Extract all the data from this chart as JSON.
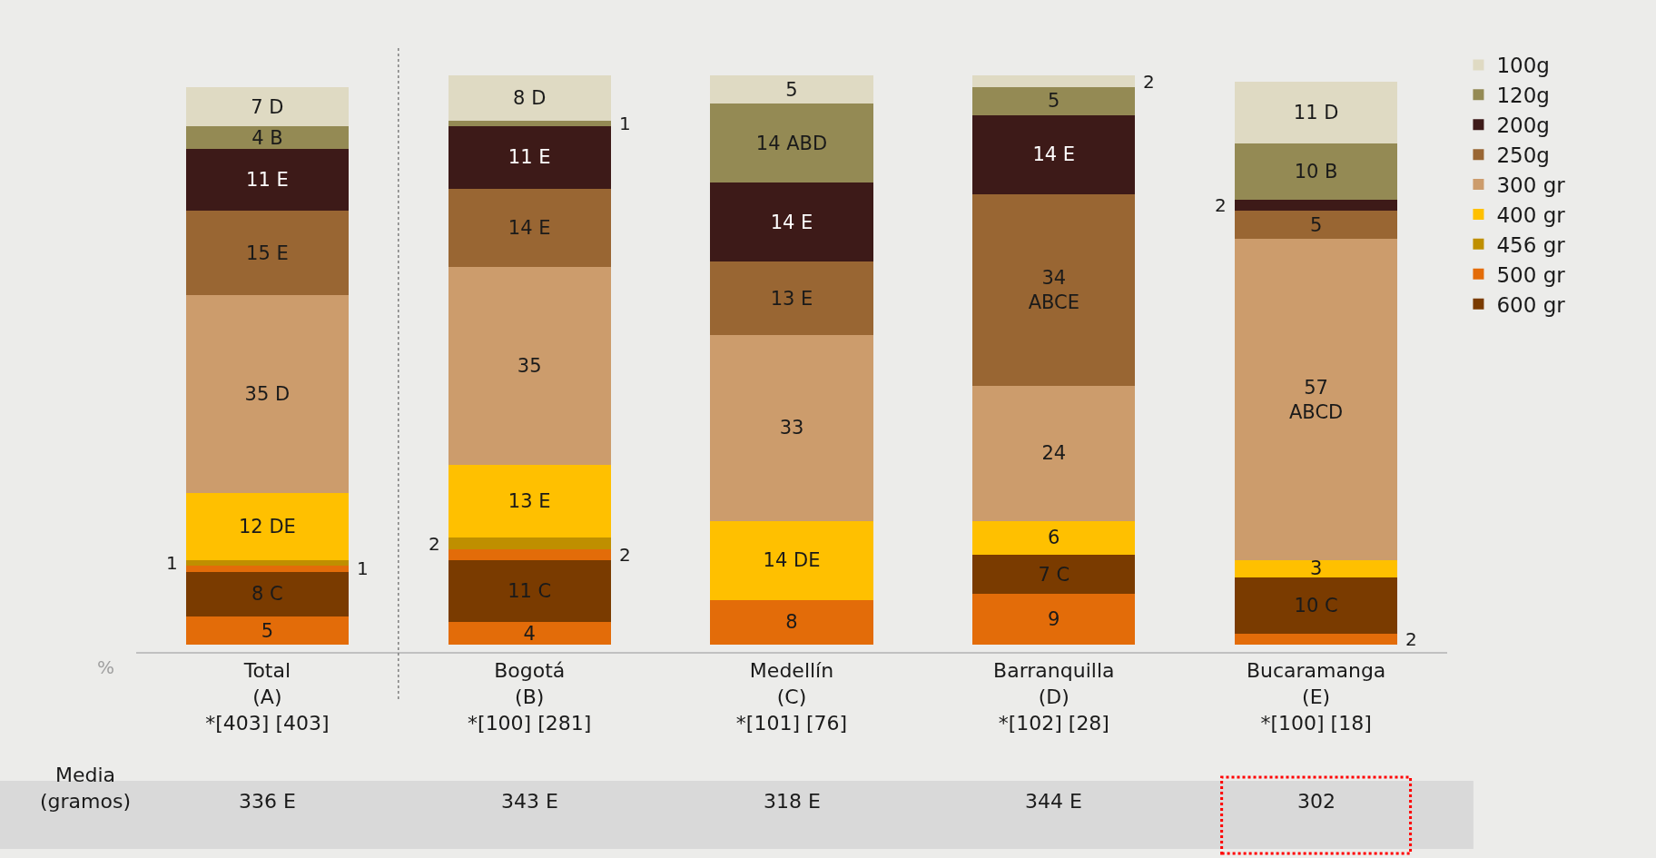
{
  "chart_data": {
    "type": "bar",
    "stacked": true,
    "ylabel": "%",
    "categories": [
      "Total\n(A)\n*[403] [403]",
      "Bogotá\n(B)\n*[100] [281]",
      "Medellín\n(C)\n*[101] [76]",
      "Barranquilla\n(D)\n*[102] [28]",
      "Bucaramanga\n(E)\n*[100] [18]"
    ],
    "series": [
      {
        "color": "#e36c09",
        "values": [
          5,
          4,
          8,
          9,
          2
        ],
        "value_labels": [
          "5",
          "4",
          "8",
          "9",
          "2"
        ]
      },
      {
        "name": "600 gr",
        "color": "#7a3b00",
        "values": [
          8,
          11,
          null,
          7,
          10
        ],
        "value_labels": [
          "8 C",
          "11 C",
          null,
          "7 C",
          "10 C"
        ]
      },
      {
        "name": "500 gr",
        "color": "#e36c09",
        "values": [
          1,
          2,
          null,
          null,
          null
        ],
        "value_labels": [
          "1",
          "2",
          null,
          null,
          null
        ]
      },
      {
        "name": "456 gr",
        "color": "#bf8f00",
        "values": [
          1,
          2,
          null,
          null,
          null
        ],
        "value_labels": [
          "1",
          "2",
          null,
          null,
          null
        ]
      },
      {
        "name": "400 gr",
        "color": "#ffc000",
        "values": [
          12,
          13,
          14,
          6,
          3
        ],
        "value_labels": [
          "12 DE",
          "13 E",
          "14 DE",
          "6",
          "3"
        ]
      },
      {
        "name": "300 gr",
        "color": "#cc9c6c",
        "values": [
          35,
          35,
          33,
          24,
          57
        ],
        "value_labels": [
          "35 D",
          "35",
          "33",
          "24",
          "57\nABCD"
        ]
      },
      {
        "name": "250g",
        "color": "#996633",
        "values": [
          15,
          14,
          13,
          34,
          5
        ],
        "value_labels": [
          "15 E",
          "14 E",
          "13 E",
          "34\nABCE",
          "5"
        ]
      },
      {
        "name": "200g",
        "color": "#3d1a18",
        "values": [
          11,
          11,
          14,
          14,
          2
        ],
        "value_labels": [
          "11 E",
          "11 E",
          "14 E",
          "14 E",
          "2"
        ]
      },
      {
        "name": "120g",
        "color": "#948a54",
        "values": [
          4,
          1,
          14,
          5,
          10
        ],
        "value_labels": [
          "4 B",
          "1",
          "14 ABD",
          "5",
          "10 B"
        ]
      },
      {
        "name": "100g",
        "color": "#dfdac3",
        "values": [
          7,
          8,
          5,
          2,
          11
        ],
        "value_labels": [
          "7 D",
          "8 D",
          "5",
          "2",
          "11 D"
        ]
      }
    ],
    "annotations": [
      "Media\n(gramos)",
      "336 E",
      "343 E",
      "318 E",
      "344 E",
      "302"
    ],
    "legend": "right",
    "grid": false
  }
}
